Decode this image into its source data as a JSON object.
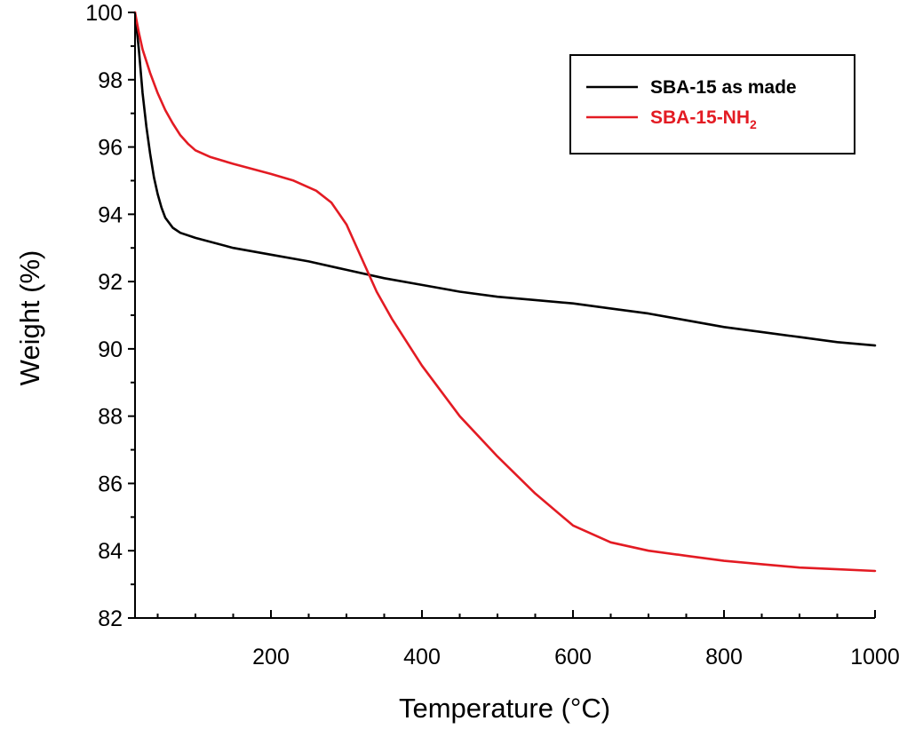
{
  "chart_data": {
    "type": "line",
    "title": "",
    "xlabel": "Temperature (°C)",
    "ylabel": "Weight (%)",
    "xlim": [
      20,
      1000
    ],
    "ylim": [
      82,
      100
    ],
    "x_ticks": [
      200,
      400,
      600,
      800,
      1000
    ],
    "y_ticks": [
      82,
      84,
      86,
      88,
      90,
      92,
      94,
      96,
      98,
      100
    ],
    "grid": false,
    "legend_position": "top-right",
    "series": [
      {
        "name": "SBA-15 as made",
        "name_main": "SBA-15 as made",
        "name_sub": "",
        "color": "#000000",
        "points": [
          [
            20,
            100.0
          ],
          [
            25,
            98.9
          ],
          [
            30,
            97.6
          ],
          [
            35,
            96.6
          ],
          [
            40,
            95.8
          ],
          [
            45,
            95.1
          ],
          [
            50,
            94.6
          ],
          [
            55,
            94.2
          ],
          [
            60,
            93.9
          ],
          [
            70,
            93.6
          ],
          [
            80,
            93.45
          ],
          [
            100,
            93.3
          ],
          [
            150,
            93.0
          ],
          [
            200,
            92.8
          ],
          [
            250,
            92.6
          ],
          [
            300,
            92.35
          ],
          [
            350,
            92.1
          ],
          [
            400,
            91.9
          ],
          [
            450,
            91.7
          ],
          [
            500,
            91.55
          ],
          [
            550,
            91.45
          ],
          [
            600,
            91.35
          ],
          [
            650,
            91.2
          ],
          [
            700,
            91.05
          ],
          [
            750,
            90.85
          ],
          [
            800,
            90.65
          ],
          [
            850,
            90.5
          ],
          [
            900,
            90.35
          ],
          [
            950,
            90.2
          ],
          [
            1000,
            90.1
          ]
        ]
      },
      {
        "name": "SBA-15-NH2",
        "name_main": "SBA-15-NH",
        "name_sub": "2",
        "color": "#e31b23",
        "points": [
          [
            20,
            100.0
          ],
          [
            25,
            99.4
          ],
          [
            30,
            98.9
          ],
          [
            40,
            98.2
          ],
          [
            50,
            97.6
          ],
          [
            60,
            97.1
          ],
          [
            70,
            96.7
          ],
          [
            80,
            96.35
          ],
          [
            90,
            96.1
          ],
          [
            100,
            95.9
          ],
          [
            120,
            95.7
          ],
          [
            150,
            95.5
          ],
          [
            200,
            95.2
          ],
          [
            230,
            95.0
          ],
          [
            260,
            94.7
          ],
          [
            280,
            94.35
          ],
          [
            300,
            93.7
          ],
          [
            320,
            92.7
          ],
          [
            340,
            91.7
          ],
          [
            360,
            90.9
          ],
          [
            400,
            89.5
          ],
          [
            450,
            88.0
          ],
          [
            500,
            86.8
          ],
          [
            550,
            85.7
          ],
          [
            600,
            84.75
          ],
          [
            650,
            84.25
          ],
          [
            700,
            84.0
          ],
          [
            750,
            83.85
          ],
          [
            800,
            83.7
          ],
          [
            850,
            83.6
          ],
          [
            900,
            83.5
          ],
          [
            950,
            83.45
          ],
          [
            1000,
            83.4
          ]
        ]
      }
    ]
  }
}
